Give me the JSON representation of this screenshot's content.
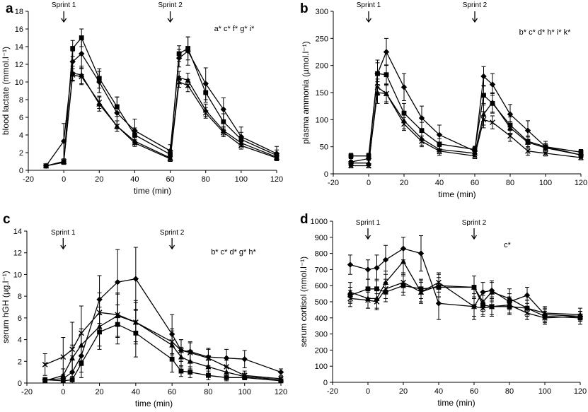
{
  "chart_data": [
    {
      "id": "a",
      "type": "line",
      "panel_label": "a",
      "title": "",
      "xlabel": "time (min)",
      "ylabel": "blood lactate (mmol.l⁻¹)",
      "xlim": [
        -20,
        120
      ],
      "ylim": [
        0,
        18
      ],
      "xticks": [
        -20,
        0,
        20,
        40,
        60,
        80,
        100,
        120
      ],
      "yticks": [
        0,
        2,
        4,
        6,
        8,
        10,
        12,
        14,
        16,
        18
      ],
      "annotation": "a* c* f* g* i*",
      "markers": [
        {
          "label": "Sprint 1",
          "x": 0
        },
        {
          "label": "Sprint 2",
          "x": 60
        }
      ],
      "series": [
        {
          "name": "diamond",
          "marker": "diamond",
          "x": [
            -10,
            0,
            5,
            10,
            20,
            30,
            40,
            60,
            65,
            70,
            80,
            90,
            100,
            120
          ],
          "y": [
            0.5,
            3.3,
            12.3,
            13.2,
            10.0,
            6.5,
            4.5,
            2.2,
            12.7,
            13.5,
            9.8,
            6.9,
            3.8,
            1.9
          ],
          "err": [
            0.2,
            2.0,
            1.2,
            1.6,
            1.2,
            1.8,
            1.3,
            0.7,
            1.0,
            1.6,
            1.8,
            1.3,
            1.1,
            0.8
          ]
        },
        {
          "name": "square",
          "marker": "square",
          "x": [
            -10,
            0,
            5,
            10,
            20,
            30,
            40,
            60,
            65,
            70,
            80,
            90,
            100,
            120
          ],
          "y": [
            0.5,
            0.9,
            13.8,
            15.0,
            10.4,
            7.2,
            4.0,
            1.8,
            13.2,
            13.8,
            8.8,
            5.5,
            3.5,
            1.7
          ],
          "err": [
            0.1,
            0.2,
            0.9,
            1.0,
            1.1,
            1.1,
            0.8,
            0.5,
            0.9,
            1.3,
            1.1,
            0.9,
            0.8,
            0.6
          ]
        },
        {
          "name": "triangle",
          "marker": "triangle",
          "x": [
            -10,
            0,
            5,
            10,
            20,
            30,
            40,
            60,
            65,
            70,
            80,
            90,
            100,
            120
          ],
          "y": [
            0.5,
            1.0,
            11.0,
            10.8,
            7.5,
            5.0,
            3.3,
            1.4,
            10.5,
            10.2,
            6.8,
            4.5,
            3.1,
            1.5
          ],
          "err": [
            0.1,
            0.2,
            0.8,
            1.0,
            0.8,
            0.6,
            0.4,
            0.3,
            0.7,
            0.8,
            0.7,
            0.5,
            0.4,
            0.3
          ]
        },
        {
          "name": "cross",
          "marker": "cross",
          "x": [
            -10,
            0,
            5,
            10,
            20,
            30,
            40,
            60,
            65,
            70,
            80,
            90,
            100,
            120
          ],
          "y": [
            0.5,
            1.0,
            10.8,
            10.6,
            7.7,
            5.0,
            3.1,
            1.3,
            10.0,
            9.6,
            6.5,
            4.3,
            2.8,
            1.4
          ],
          "err": [
            0.1,
            0.2,
            0.7,
            0.9,
            0.7,
            0.6,
            0.4,
            0.3,
            0.6,
            0.7,
            0.6,
            0.5,
            0.4,
            0.3
          ]
        }
      ]
    },
    {
      "id": "b",
      "type": "line",
      "panel_label": "b",
      "title": "",
      "xlabel": "time (min)",
      "ylabel": "plasma ammonia (µmol.l⁻¹)",
      "xlim": [
        -20,
        120
      ],
      "ylim": [
        0,
        300
      ],
      "xticks": [
        -20,
        0,
        20,
        40,
        60,
        80,
        100,
        120
      ],
      "yticks": [
        0,
        50,
        100,
        150,
        200,
        250,
        300
      ],
      "annotation": "b* c* d* h* i* k*",
      "markers": [
        {
          "label": "Sprint 1",
          "x": 0
        },
        {
          "label": "Sprint 2",
          "x": 60
        }
      ],
      "series": [
        {
          "name": "diamond",
          "marker": "diamond",
          "x": [
            -10,
            0,
            5,
            10,
            20,
            30,
            40,
            60,
            65,
            70,
            80,
            90,
            100,
            120
          ],
          "y": [
            22,
            28,
            185,
            225,
            160,
            103,
            72,
            42,
            180,
            165,
            110,
            80,
            50,
            35
          ],
          "err": [
            8,
            10,
            25,
            25,
            25,
            22,
            18,
            8,
            18,
            20,
            18,
            18,
            10,
            6
          ]
        },
        {
          "name": "square",
          "marker": "square",
          "x": [
            -10,
            0,
            5,
            10,
            20,
            30,
            40,
            60,
            65,
            70,
            80,
            90,
            100,
            120
          ],
          "y": [
            33,
            33,
            185,
            183,
            112,
            80,
            55,
            45,
            145,
            130,
            90,
            60,
            50,
            40
          ],
          "err": [
            5,
            5,
            20,
            18,
            18,
            15,
            10,
            6,
            18,
            18,
            15,
            10,
            6,
            5
          ]
        },
        {
          "name": "triangle",
          "marker": "triangle",
          "x": [
            -10,
            0,
            5,
            10,
            20,
            30,
            40,
            60,
            65,
            70,
            80,
            90,
            100,
            120
          ],
          "y": [
            20,
            20,
            150,
            148,
            98,
            65,
            45,
            38,
            110,
            132,
            85,
            58,
            48,
            35
          ],
          "err": [
            5,
            5,
            20,
            18,
            15,
            12,
            8,
            6,
            20,
            18,
            12,
            10,
            8,
            5
          ]
        },
        {
          "name": "cross",
          "marker": "cross",
          "x": [
            -10,
            0,
            5,
            10,
            20,
            30,
            40,
            60,
            65,
            70,
            80,
            90,
            100,
            120
          ],
          "y": [
            15,
            15,
            160,
            148,
            92,
            60,
            42,
            33,
            100,
            95,
            70,
            42,
            38,
            30
          ],
          "err": [
            4,
            4,
            15,
            15,
            12,
            10,
            8,
            5,
            15,
            12,
            10,
            8,
            5,
            4
          ]
        }
      ]
    },
    {
      "id": "c",
      "type": "line",
      "panel_label": "c",
      "title": "",
      "xlabel": "time (min)",
      "ylabel": "serum hGH (µg.l⁻¹)",
      "xlim": [
        -20,
        120
      ],
      "ylim": [
        0,
        14
      ],
      "xticks": [
        -20,
        0,
        20,
        40,
        60,
        80,
        100,
        120
      ],
      "yticks": [
        0,
        2,
        4,
        6,
        8,
        10,
        12,
        14
      ],
      "annotation": "b* c* d* g* h*",
      "markers": [
        {
          "label": "Sprint 1",
          "x": 0
        },
        {
          "label": "Sprint 2",
          "x": 60
        }
      ],
      "series": [
        {
          "name": "diamond",
          "marker": "diamond",
          "x": [
            -10,
            0,
            5,
            10,
            20,
            30,
            40,
            60,
            65,
            70,
            80,
            90,
            100,
            120
          ],
          "y": [
            0.3,
            0.4,
            1.0,
            2.5,
            7.7,
            9.3,
            9.6,
            4.5,
            3.0,
            2.9,
            2.4,
            2.3,
            2.2,
            1.0
          ],
          "err": [
            0.2,
            0.4,
            1.5,
            2.0,
            2.2,
            3.0,
            2.9,
            1.8,
            1.0,
            0.9,
            0.8,
            0.8,
            0.8,
            0.3
          ]
        },
        {
          "name": "square",
          "marker": "square",
          "x": [
            -10,
            0,
            5,
            10,
            20,
            30,
            40,
            60,
            65,
            70,
            80,
            90,
            100,
            120
          ],
          "y": [
            0.3,
            0.2,
            0.3,
            1.8,
            4.7,
            5.4,
            4.6,
            2.2,
            1.1,
            1.0,
            0.7,
            0.5,
            0.5,
            0.2
          ],
          "err": [
            0.2,
            0.2,
            0.3,
            0.8,
            1.6,
            1.8,
            2.2,
            1.2,
            0.5,
            0.5,
            0.4,
            0.3,
            0.2,
            0.1
          ]
        },
        {
          "name": "triangle",
          "marker": "triangle",
          "x": [
            -10,
            0,
            5,
            10,
            20,
            30,
            40,
            60,
            65,
            70,
            80,
            90,
            100,
            120
          ],
          "y": [
            0.2,
            0.7,
            2.3,
            3.5,
            5.2,
            6.2,
            5.6,
            3.5,
            2.4,
            2.0,
            1.5,
            1.0,
            0.6,
            0.3
          ],
          "err": [
            0.2,
            0.6,
            1.2,
            1.5,
            1.8,
            2.0,
            2.0,
            1.3,
            0.9,
            0.7,
            0.6,
            0.5,
            0.3,
            0.2
          ]
        },
        {
          "name": "cross",
          "marker": "cross",
          "x": [
            -10,
            0,
            5,
            10,
            20,
            30,
            40,
            60,
            65,
            70,
            80,
            90,
            100,
            120
          ],
          "y": [
            1.7,
            2.4,
            3.1,
            4.6,
            6.5,
            6.3,
            5.6,
            3.8,
            3.0,
            2.8,
            2.3,
            1.5,
            0.7,
            0.4
          ],
          "err": [
            1.0,
            1.8,
            2.5,
            2.5,
            1.8,
            2.0,
            1.8,
            1.2,
            1.0,
            0.9,
            0.8,
            0.6,
            0.4,
            0.2
          ]
        }
      ]
    },
    {
      "id": "d",
      "type": "line",
      "panel_label": "d",
      "title": "",
      "xlabel": "time (min)",
      "ylabel": "serum cortisol (nmol.l⁻¹)",
      "xlim": [
        -20,
        120
      ],
      "ylim": [
        0,
        1000
      ],
      "xticks": [
        -20,
        0,
        20,
        40,
        60,
        80,
        100,
        120
      ],
      "yticks": [
        0,
        100,
        200,
        300,
        400,
        500,
        600,
        700,
        800,
        900,
        1000
      ],
      "annotation": "c*",
      "markers": [
        {
          "label": "Sprint 1",
          "x": 0
        },
        {
          "label": "Sprint 2",
          "x": 60
        }
      ],
      "series": [
        {
          "name": "diamond",
          "marker": "diamond",
          "x": [
            -10,
            0,
            5,
            10,
            20,
            30,
            40,
            60,
            65,
            70,
            80,
            90,
            100,
            120
          ],
          "y": [
            730,
            700,
            710,
            760,
            830,
            800,
            490,
            470,
            560,
            570,
            500,
            540,
            420,
            410
          ],
          "err": [
            60,
            60,
            80,
            90,
            70,
            110,
            100,
            80,
            60,
            60,
            50,
            50,
            40,
            30
          ]
        },
        {
          "name": "square",
          "marker": "square",
          "x": [
            -10,
            0,
            5,
            10,
            20,
            30,
            40,
            60,
            65,
            70,
            80,
            90,
            100,
            120
          ],
          "y": [
            540,
            580,
            580,
            560,
            600,
            580,
            590,
            590,
            480,
            470,
            470,
            460,
            410,
            400
          ],
          "err": [
            50,
            60,
            60,
            60,
            60,
            60,
            60,
            70,
            60,
            60,
            50,
            50,
            40,
            40
          ]
        },
        {
          "name": "triangle",
          "marker": "triangle",
          "x": [
            -10,
            0,
            5,
            10,
            20,
            30,
            40,
            60,
            65,
            70,
            80,
            90,
            100,
            120
          ],
          "y": [
            560,
            520,
            520,
            620,
            750,
            560,
            600,
            590,
            500,
            560,
            520,
            460,
            430,
            420
          ],
          "err": [
            60,
            60,
            60,
            70,
            80,
            70,
            70,
            70,
            60,
            60,
            60,
            50,
            40,
            40
          ]
        },
        {
          "name": "cross",
          "marker": "cross",
          "x": [
            -10,
            0,
            5,
            10,
            20,
            30,
            40,
            60,
            65,
            70,
            80,
            90,
            100,
            120
          ],
          "y": [
            520,
            510,
            500,
            580,
            620,
            560,
            620,
            470,
            460,
            470,
            480,
            430,
            400,
            410
          ],
          "err": [
            50,
            50,
            50,
            60,
            60,
            60,
            60,
            60,
            50,
            50,
            50,
            40,
            40,
            30
          ]
        }
      ]
    }
  ]
}
